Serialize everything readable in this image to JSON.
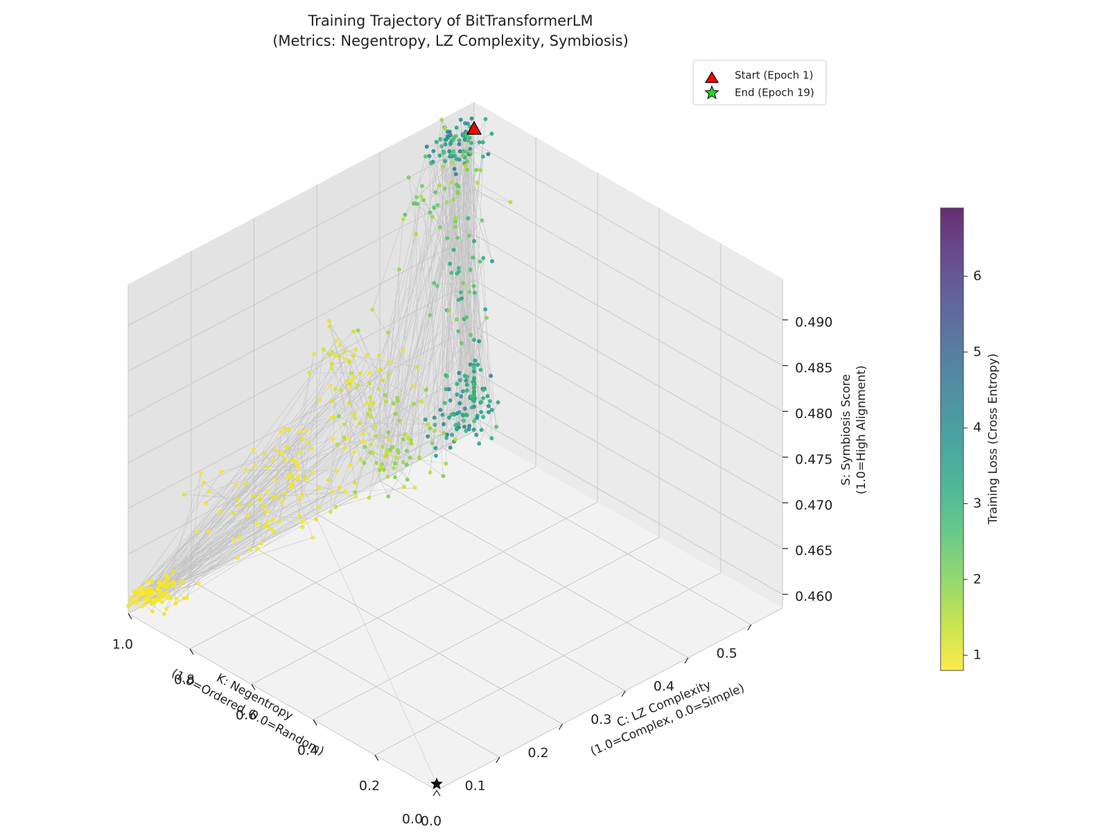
{
  "chart_data": {
    "type": "scatter",
    "projection": "3d",
    "title_line1": "Training Trajectory of BitTransformerLM",
    "title_line2": "(Metrics: Negentropy, LZ Complexity, Symbiosis)",
    "axes": {
      "x": {
        "label_line1": "K: Negentropy",
        "label_line2": "(1.0=Ordered, 0.0=Random)",
        "ticks": [
          "1.0",
          "0.8",
          "0.6",
          "0.4",
          "0.2",
          "0.0"
        ],
        "range": [
          0.0,
          1.0
        ]
      },
      "y": {
        "label_line1": "C: LZ Complexity",
        "label_line2": "(1.0=Complex, 0.0=Simple)",
        "ticks": [
          "0.0",
          "0.1",
          "0.2",
          "0.3",
          "0.4",
          "0.5"
        ],
        "range": [
          0.0,
          0.55
        ]
      },
      "z": {
        "label_line1": "S: Symbiosis Score",
        "label_line2": "(1.0=High Alignment)",
        "ticks": [
          "0.460",
          "0.465",
          "0.470",
          "0.475",
          "0.480",
          "0.485",
          "0.490"
        ],
        "range": [
          0.4585,
          0.4945
        ]
      }
    },
    "colorbar": {
      "label": "Training Loss (Cross Entropy)",
      "ticks": [
        "1",
        "2",
        "3",
        "4",
        "5",
        "6"
      ],
      "range": [
        0.8,
        6.9
      ],
      "colormap": "viridis_r"
    },
    "legend": {
      "placement": "top-right",
      "start_label": "Start (Epoch 1)",
      "end_label": "End (Epoch 19)",
      "start_color": "#ff0000",
      "end_color": "#22dd22"
    },
    "grid": true,
    "trajectory_line_color": "#bbbbbb",
    "start_point": {
      "x": 1.0,
      "y": 0.55,
      "z": 0.4915,
      "loss": 6.8
    },
    "end_point": {
      "x": 0.0,
      "y": 0.0,
      "z": 0.4592,
      "loss": 0.85
    },
    "clusters": [
      {
        "x": 0.99,
        "y": 0.51,
        "z": 0.4918,
        "sx": 0.04,
        "sy": 0.02,
        "sz": 0.0008,
        "loss": [
          2.2,
          4.5
        ],
        "n": 70
      },
      {
        "x": 0.99,
        "y": 0.5,
        "z": 0.4865,
        "sx": 0.04,
        "sy": 0.03,
        "sz": 0.0035,
        "loss": [
          1.4,
          2.6
        ],
        "n": 45
      },
      {
        "x": 0.99,
        "y": 0.52,
        "z": 0.4765,
        "sx": 0.04,
        "sy": 0.03,
        "sz": 0.003,
        "loss": [
          1.8,
          3.6
        ],
        "n": 35
      },
      {
        "x": 0.99,
        "y": 0.53,
        "z": 0.4625,
        "sx": 0.04,
        "sy": 0.03,
        "sz": 0.002,
        "loss": [
          2.6,
          4.2
        ],
        "n": 110
      },
      {
        "x": 0.99,
        "y": 0.43,
        "z": 0.4605,
        "sx": 0.05,
        "sy": 0.03,
        "sz": 0.0012,
        "loss": [
          1.2,
          2.2
        ],
        "n": 45
      },
      {
        "x": 0.99,
        "y": 0.4,
        "z": 0.4672,
        "sx": 0.04,
        "sy": 0.04,
        "sz": 0.004,
        "loss": [
          1.1,
          2.0
        ],
        "n": 30
      },
      {
        "x": 0.99,
        "y": 0.33,
        "z": 0.4742,
        "sx": 0.04,
        "sy": 0.03,
        "sz": 0.0025,
        "loss": [
          0.85,
          1.3
        ],
        "n": 35
      },
      {
        "x": 0.99,
        "y": 0.36,
        "z": 0.466,
        "sx": 0.05,
        "sy": 0.04,
        "sz": 0.003,
        "loss": [
          0.85,
          1.5
        ],
        "n": 40
      },
      {
        "x": 0.99,
        "y": 0.22,
        "z": 0.4645,
        "sx": 0.05,
        "sy": 0.05,
        "sz": 0.0035,
        "loss": [
          0.8,
          1.05
        ],
        "n": 90
      },
      {
        "x": 0.99,
        "y": 0.03,
        "z": 0.4598,
        "sx": 0.03,
        "sy": 0.02,
        "sz": 0.0008,
        "loss": [
          0.8,
          0.95
        ],
        "n": 90
      }
    ]
  }
}
